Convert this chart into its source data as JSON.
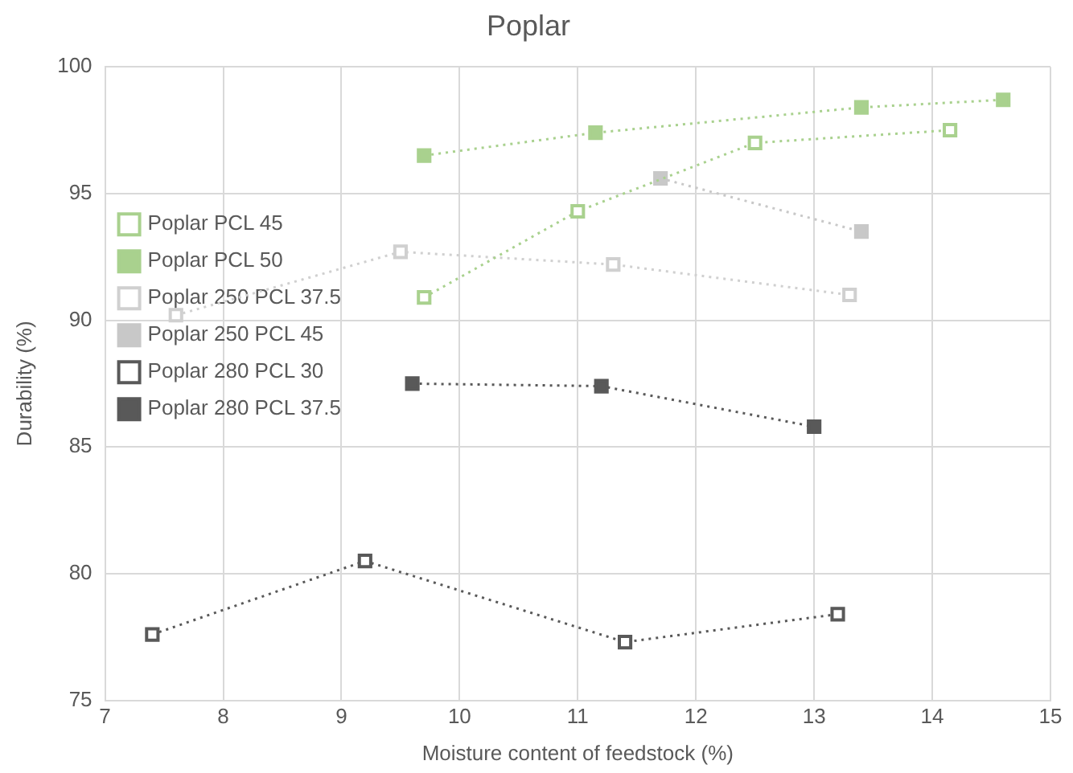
{
  "chart_data": {
    "type": "line",
    "title": "Poplar",
    "xlabel": "Moisture content of feedstock (%)",
    "ylabel": "Durability (%)",
    "xlim": [
      7,
      15
    ],
    "xticks": [
      7,
      8,
      9,
      10,
      11,
      12,
      13,
      14,
      15
    ],
    "ylim": [
      75,
      100
    ],
    "yticks": [
      75,
      80,
      85,
      90,
      95,
      100
    ],
    "grid": true,
    "legend": "left",
    "line_style": "dotted",
    "series": [
      {
        "name": "Poplar PCL 45",
        "color": "#a9d18e",
        "marker": "square-open",
        "x": [
          9.7,
          11.0,
          12.5,
          14.15
        ],
        "values": [
          90.9,
          94.3,
          97.0,
          97.5
        ]
      },
      {
        "name": "Poplar PCL 50",
        "color": "#a9d18e",
        "marker": "square",
        "x": [
          9.7,
          11.15,
          13.4,
          14.6
        ],
        "values": [
          96.5,
          97.4,
          98.4,
          98.7
        ]
      },
      {
        "name": "Poplar 250 PCL 37.5",
        "color": "#d0d0d0",
        "marker": "square-open",
        "x": [
          7.6,
          9.5,
          11.3,
          13.3
        ],
        "values": [
          90.2,
          92.7,
          92.2,
          91.0
        ]
      },
      {
        "name": "Poplar 250 PCL 45",
        "color": "#c8c8c8",
        "marker": "square",
        "x": [
          11.7,
          13.4
        ],
        "values": [
          95.6,
          93.5
        ]
      },
      {
        "name": "Poplar 280 PCL 30",
        "color": "#595959",
        "marker": "square-open",
        "x": [
          7.4,
          9.2,
          11.4,
          13.2
        ],
        "values": [
          77.6,
          80.5,
          77.3,
          78.4
        ]
      },
      {
        "name": "Poplar 280 PCL 37.5",
        "color": "#595959",
        "marker": "square",
        "x": [
          9.6,
          11.2,
          13.0
        ],
        "values": [
          87.5,
          87.4,
          85.8
        ]
      }
    ]
  }
}
